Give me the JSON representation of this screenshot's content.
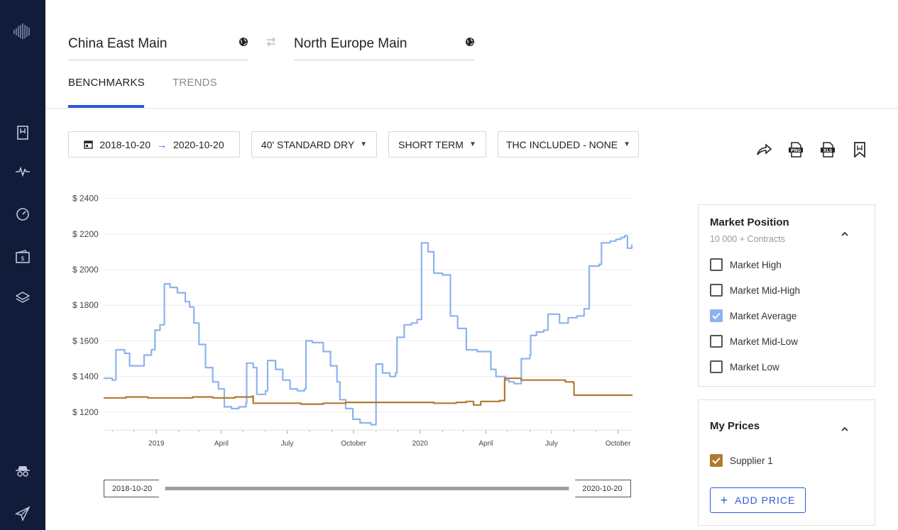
{
  "route": {
    "origin": "China East Main",
    "destination": "North Europe Main"
  },
  "tabs": [
    {
      "label": "BENCHMARKS",
      "active": true
    },
    {
      "label": "TRENDS",
      "active": false
    }
  ],
  "filters": {
    "date_from": "2018-10-20",
    "date_to": "2020-10-20",
    "container": "40' STANDARD DRY",
    "term": "SHORT TERM",
    "thc": "THC INCLUDED - NONE"
  },
  "actions": [
    "share-icon",
    "png-export-icon",
    "xls-export-icon",
    "bookmark-icon"
  ],
  "sidebar": {
    "icons": [
      "logo-icon",
      "bookmark-icon",
      "pulse-icon",
      "gauge-icon",
      "wallet-icon",
      "layers-icon",
      "incognito-icon",
      "plane-icon"
    ]
  },
  "slider": {
    "start": "2018-10-20",
    "end": "2020-10-20"
  },
  "market_position": {
    "title": "Market Position",
    "subtitle": "10 000 + Contracts",
    "options": [
      {
        "label": "Market High",
        "checked": false
      },
      {
        "label": "Market Mid-High",
        "checked": false
      },
      {
        "label": "Market Average",
        "checked": true
      },
      {
        "label": "Market Mid-Low",
        "checked": false
      },
      {
        "label": "Market Low",
        "checked": false
      }
    ]
  },
  "my_prices": {
    "title": "My Prices",
    "suppliers": [
      {
        "label": "Supplier 1",
        "checked": true
      }
    ],
    "add_label": "ADD PRICE"
  },
  "colors": {
    "accent": "#2b5cd6",
    "sidebar": "#111b3a",
    "market_average": "#8cb3ee",
    "supplier_1": "#b07a2e"
  },
  "chart_data": {
    "type": "line",
    "y_tick_labels": [
      "$ 2400",
      "$ 2200",
      "$ 2000",
      "$ 1800",
      "$ 1600",
      "$ 1400",
      "$ 1200"
    ],
    "y_ticks": [
      2400,
      2200,
      2000,
      1800,
      1600,
      1400,
      1200
    ],
    "x_tick_labels": [
      "2019",
      "April",
      "July",
      "October",
      "2020",
      "April",
      "July",
      "October"
    ],
    "x_ticks": [
      "2019-01-01",
      "2019-04-01",
      "2019-07-01",
      "2019-10-01",
      "2020-01-01",
      "2020-04-01",
      "2020-07-01",
      "2020-10-01"
    ],
    "x_range": [
      "2018-10-20",
      "2020-10-20"
    ],
    "ylim": [
      1100,
      2430
    ],
    "grid": true,
    "series": [
      {
        "name": "Market Average",
        "color": "#8cb3ee",
        "points": [
          [
            "2018-10-20",
            1390
          ],
          [
            "2018-11-01",
            1380
          ],
          [
            "2018-11-06",
            1550
          ],
          [
            "2018-11-18",
            1530
          ],
          [
            "2018-11-25",
            1460
          ],
          [
            "2018-12-15",
            1520
          ],
          [
            "2018-12-25",
            1550
          ],
          [
            "2018-12-30",
            1660
          ],
          [
            "2019-01-06",
            1690
          ],
          [
            "2019-01-12",
            1920
          ],
          [
            "2019-01-20",
            1900
          ],
          [
            "2019-01-30",
            1870
          ],
          [
            "2019-02-10",
            1820
          ],
          [
            "2019-02-16",
            1790
          ],
          [
            "2019-02-22",
            1700
          ],
          [
            "2019-03-01",
            1580
          ],
          [
            "2019-03-10",
            1450
          ],
          [
            "2019-03-20",
            1370
          ],
          [
            "2019-03-28",
            1330
          ],
          [
            "2019-04-05",
            1230
          ],
          [
            "2019-04-15",
            1220
          ],
          [
            "2019-04-25",
            1230
          ],
          [
            "2019-05-05",
            1250
          ],
          [
            "2019-05-06",
            1475
          ],
          [
            "2019-05-15",
            1450
          ],
          [
            "2019-05-20",
            1300
          ],
          [
            "2019-06-01",
            1320
          ],
          [
            "2019-06-04",
            1490
          ],
          [
            "2019-06-15",
            1440
          ],
          [
            "2019-06-25",
            1380
          ],
          [
            "2019-07-05",
            1330
          ],
          [
            "2019-07-15",
            1320
          ],
          [
            "2019-07-25",
            1330
          ],
          [
            "2019-07-27",
            1600
          ],
          [
            "2019-08-05",
            1590
          ],
          [
            "2019-08-20",
            1540
          ],
          [
            "2019-08-30",
            1460
          ],
          [
            "2019-09-08",
            1370
          ],
          [
            "2019-09-12",
            1270
          ],
          [
            "2019-09-20",
            1220
          ],
          [
            "2019-09-30",
            1160
          ],
          [
            "2019-10-10",
            1140
          ],
          [
            "2019-10-25",
            1130
          ],
          [
            "2019-11-01",
            1470
          ],
          [
            "2019-11-10",
            1420
          ],
          [
            "2019-11-20",
            1400
          ],
          [
            "2019-11-28",
            1420
          ],
          [
            "2019-11-30",
            1620
          ],
          [
            "2019-12-10",
            1690
          ],
          [
            "2019-12-20",
            1700
          ],
          [
            "2019-12-28",
            1720
          ],
          [
            "2020-01-03",
            2150
          ],
          [
            "2020-01-12",
            2100
          ],
          [
            "2020-01-20",
            1980
          ],
          [
            "2020-02-01",
            1970
          ],
          [
            "2020-02-12",
            1740
          ],
          [
            "2020-02-22",
            1670
          ],
          [
            "2020-03-05",
            1550
          ],
          [
            "2020-03-20",
            1540
          ],
          [
            "2020-04-01",
            1540
          ],
          [
            "2020-04-08",
            1440
          ],
          [
            "2020-04-15",
            1400
          ],
          [
            "2020-04-28",
            1380
          ],
          [
            "2020-05-03",
            1370
          ],
          [
            "2020-05-10",
            1360
          ],
          [
            "2020-05-20",
            1500
          ],
          [
            "2020-06-01",
            1520
          ],
          [
            "2020-06-02",
            1630
          ],
          [
            "2020-06-10",
            1650
          ],
          [
            "2020-06-20",
            1660
          ],
          [
            "2020-06-26",
            1750
          ],
          [
            "2020-07-08",
            1750
          ],
          [
            "2020-07-12",
            1700
          ],
          [
            "2020-07-24",
            1730
          ],
          [
            "2020-08-05",
            1740
          ],
          [
            "2020-08-15",
            1780
          ],
          [
            "2020-08-22",
            2020
          ],
          [
            "2020-09-05",
            2030
          ],
          [
            "2020-09-08",
            2150
          ],
          [
            "2020-09-20",
            2160
          ],
          [
            "2020-09-28",
            2170
          ],
          [
            "2020-10-05",
            2180
          ],
          [
            "2020-10-10",
            2190
          ],
          [
            "2020-10-14",
            2120
          ],
          [
            "2020-10-20",
            2140
          ]
        ]
      },
      {
        "name": "Supplier 1",
        "color": "#b07a2e",
        "points": [
          [
            "2018-10-20",
            1280
          ],
          [
            "2018-11-20",
            1285
          ],
          [
            "2018-12-20",
            1280
          ],
          [
            "2019-01-20",
            1280
          ],
          [
            "2019-02-20",
            1285
          ],
          [
            "2019-03-20",
            1280
          ],
          [
            "2019-04-20",
            1285
          ],
          [
            "2019-05-14",
            1290
          ],
          [
            "2019-05-15",
            1250
          ],
          [
            "2019-06-20",
            1250
          ],
          [
            "2019-07-20",
            1245
          ],
          [
            "2019-08-20",
            1250
          ],
          [
            "2019-09-20",
            1255
          ],
          [
            "2019-10-20",
            1255
          ],
          [
            "2019-11-20",
            1255
          ],
          [
            "2019-12-20",
            1255
          ],
          [
            "2020-01-20",
            1250
          ],
          [
            "2020-02-20",
            1255
          ],
          [
            "2020-03-05",
            1260
          ],
          [
            "2020-03-15",
            1240
          ],
          [
            "2020-03-25",
            1260
          ],
          [
            "2020-04-20",
            1265
          ],
          [
            "2020-04-26",
            1265
          ],
          [
            "2020-04-27",
            1390
          ],
          [
            "2020-05-20",
            1380
          ],
          [
            "2020-06-20",
            1380
          ],
          [
            "2020-07-20",
            1370
          ],
          [
            "2020-07-31",
            1365
          ],
          [
            "2020-08-01",
            1295
          ],
          [
            "2020-08-20",
            1295
          ],
          [
            "2020-09-20",
            1295
          ],
          [
            "2020-10-20",
            1290
          ]
        ]
      }
    ]
  }
}
